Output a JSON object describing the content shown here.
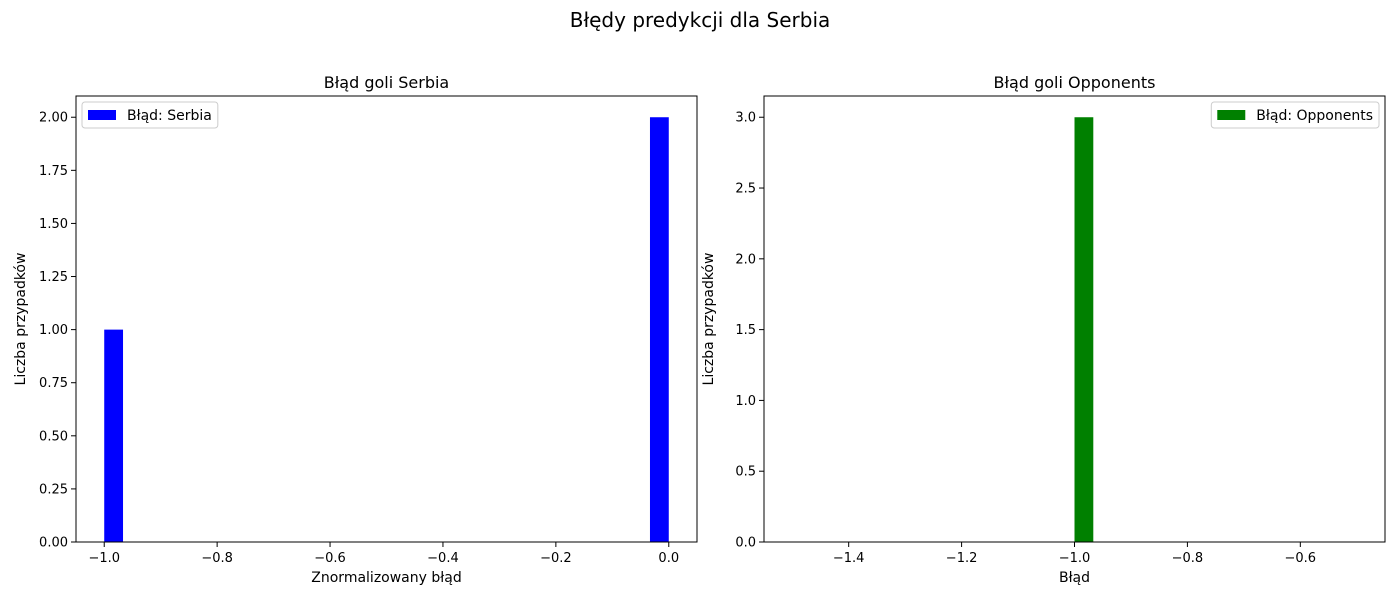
{
  "figure": {
    "suptitle": "Błędy predykcji dla Serbia"
  },
  "chart_data": [
    {
      "type": "bar",
      "title": "Błąd goli Serbia",
      "xlabel": "Znormalizowany błąd",
      "ylabel": "Liczba przypadków",
      "xlim": [
        -1.05,
        0.05
      ],
      "ylim": [
        0,
        2.1
      ],
      "x_ticks": [
        -1.0,
        -0.8,
        -0.6,
        -0.4,
        -0.2,
        0.0
      ],
      "x_tick_labels": [
        "−1.0",
        "−0.8",
        "−0.6",
        "−0.4",
        "−0.2",
        "0.0"
      ],
      "y_ticks": [
        0,
        0.25,
        0.5,
        0.75,
        1.0,
        1.25,
        1.5,
        1.75,
        2.0
      ],
      "y_tick_labels": [
        "0.00",
        "0.25",
        "0.50",
        "0.75",
        "1.00",
        "1.25",
        "1.50",
        "1.75",
        "2.00"
      ],
      "bars": [
        {
          "x_start": -1.0,
          "x_end": -0.9667,
          "value": 1
        },
        {
          "x_start": -0.0333,
          "x_end": 0.0,
          "value": 2
        }
      ],
      "series": [
        {
          "name": "Błąd: Serbia",
          "color": "#0000ff"
        }
      ],
      "legend_placement": "upper-left",
      "grid": false
    },
    {
      "type": "bar",
      "title": "Błąd goli Opponents",
      "xlabel": "Błąd",
      "ylabel": "Liczba przypadków",
      "xlim": [
        -1.55,
        -0.45
      ],
      "ylim": [
        0,
        3.15
      ],
      "x_ticks": [
        -1.4,
        -1.2,
        -1.0,
        -0.8,
        -0.6
      ],
      "x_tick_labels": [
        "−1.4",
        "−1.2",
        "−1.0",
        "−0.8",
        "−0.6"
      ],
      "y_ticks": [
        0,
        0.5,
        1.0,
        1.5,
        2.0,
        2.5,
        3.0
      ],
      "y_tick_labels": [
        "0.0",
        "0.5",
        "1.0",
        "1.5",
        "2.0",
        "2.5",
        "3.0"
      ],
      "bars": [
        {
          "x_start": -1.0,
          "x_end": -0.9667,
          "value": 3
        }
      ],
      "series": [
        {
          "name": "Błąd: Opponents",
          "color": "#008000"
        }
      ],
      "legend_placement": "upper-right",
      "grid": false
    }
  ]
}
